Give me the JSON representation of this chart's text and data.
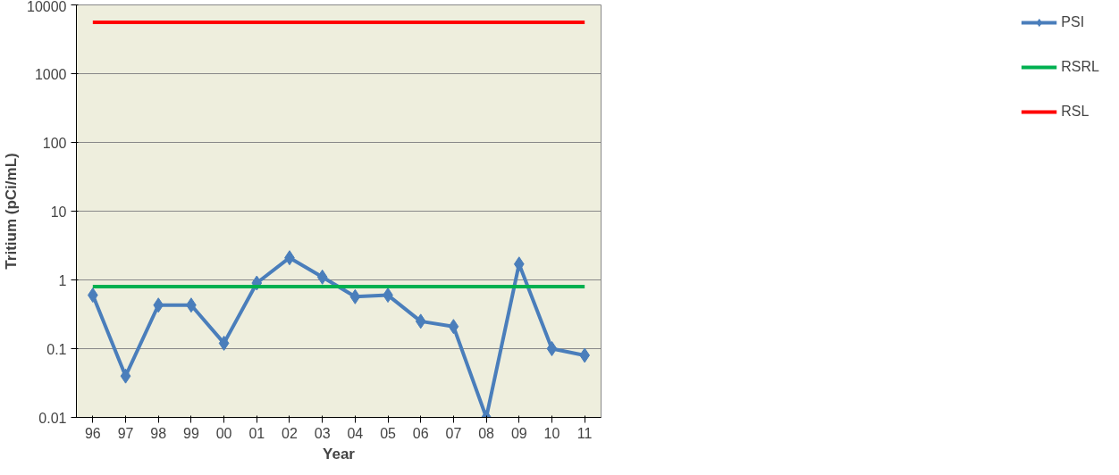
{
  "chart_data": {
    "type": "line",
    "xlabel": "Year",
    "ylabel": "Tritium (pCi/mL)",
    "categories": [
      "96",
      "97",
      "98",
      "99",
      "00",
      "01",
      "02",
      "03",
      "04",
      "05",
      "06",
      "07",
      "08",
      "09",
      "10",
      "11"
    ],
    "series": [
      {
        "name": "PSI",
        "color": "#4a7ebb",
        "marker": "diamond",
        "values": [
          0.6,
          0.04,
          0.43,
          0.43,
          0.12,
          0.9,
          2.1,
          1.1,
          0.57,
          0.6,
          0.25,
          0.21,
          0.01,
          1.7,
          0.1,
          0.08
        ]
      },
      {
        "name": "RSRL",
        "color": "#00b050",
        "marker": "none",
        "values": [
          0.8,
          0.8,
          0.8,
          0.8,
          0.8,
          0.8,
          0.8,
          0.8,
          0.8,
          0.8,
          0.8,
          0.8,
          0.8,
          0.8,
          0.8,
          0.8
        ]
      },
      {
        "name": "RSL",
        "color": "#ff0000",
        "marker": "none",
        "values": [
          5600,
          5600,
          5600,
          5600,
          5600,
          5600,
          5600,
          5600,
          5600,
          5600,
          5600,
          5600,
          5600,
          5600,
          5600,
          5600
        ]
      }
    ],
    "log": "y",
    "ylim": [
      0.01,
      10000
    ],
    "yticks": [
      0.01,
      0.1,
      1,
      10,
      100,
      1000,
      10000
    ],
    "grid": "y",
    "legend": "right",
    "line_style": "solid"
  }
}
